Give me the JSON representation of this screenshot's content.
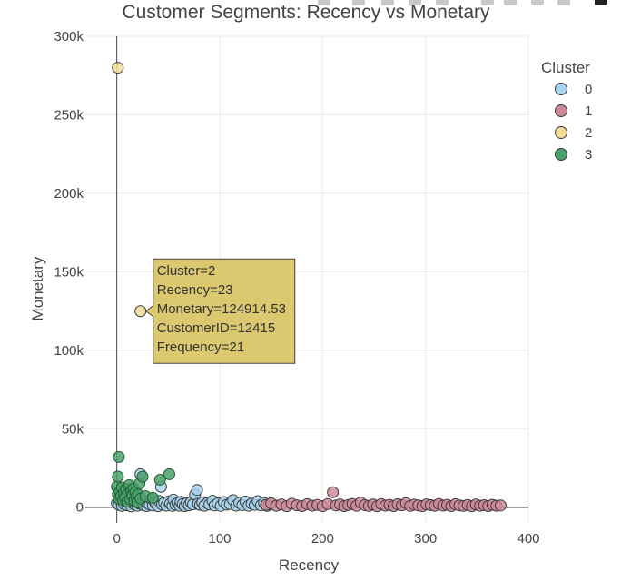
{
  "chart_data": {
    "type": "scatter",
    "title": "Customer Segments: Recency vs Monetary",
    "xlabel": "Recency",
    "ylabel": "Monetary",
    "xlim": [
      -20,
      400
    ],
    "ylim": [
      -10000,
      300000
    ],
    "x_ticks": [
      0,
      100,
      200,
      300,
      400
    ],
    "x_tick_labels": [
      "0",
      "100",
      "200",
      "300",
      "400"
    ],
    "y_ticks": [
      0,
      50000,
      100000,
      150000,
      200000,
      250000,
      300000
    ],
    "y_tick_labels": [
      "0",
      "50k",
      "100k",
      "150k",
      "200k",
      "250k",
      "300k"
    ],
    "grid": true,
    "legend": {
      "title": "Cluster",
      "position": "top-right"
    },
    "series": [
      {
        "name": "0",
        "color": "#a6d4ec",
        "points": [
          [
            0,
            2500
          ],
          [
            2,
            1500
          ],
          [
            4,
            3500
          ],
          [
            5,
            800
          ],
          [
            7,
            2000
          ],
          [
            8,
            4200
          ],
          [
            10,
            1200
          ],
          [
            12,
            2800
          ],
          [
            14,
            500
          ],
          [
            15,
            3000
          ],
          [
            17,
            1800
          ],
          [
            18,
            6000
          ],
          [
            20,
            900
          ],
          [
            22,
            2200
          ],
          [
            23,
            21000
          ],
          [
            24,
            4500
          ],
          [
            26,
            1300
          ],
          [
            27,
            3800
          ],
          [
            29,
            700
          ],
          [
            30,
            2600
          ],
          [
            32,
            1600
          ],
          [
            33,
            5200
          ],
          [
            35,
            1100
          ],
          [
            37,
            3200
          ],
          [
            38,
            2100
          ],
          [
            40,
            600
          ],
          [
            41,
            4000
          ],
          [
            43,
            13000
          ],
          [
            44,
            1700
          ],
          [
            46,
            2900
          ],
          [
            48,
            1000
          ],
          [
            50,
            3600
          ],
          [
            52,
            2300
          ],
          [
            54,
            800
          ],
          [
            55,
            4800
          ],
          [
            57,
            1500
          ],
          [
            59,
            2700
          ],
          [
            61,
            900
          ],
          [
            62,
            3400
          ],
          [
            64,
            1900
          ],
          [
            66,
            700
          ],
          [
            68,
            2500
          ],
          [
            70,
            1200
          ],
          [
            72,
            3100
          ],
          [
            74,
            1800
          ],
          [
            76,
            8000
          ],
          [
            78,
            11000
          ],
          [
            79,
            2200
          ],
          [
            81,
            1400
          ],
          [
            83,
            3000
          ],
          [
            85,
            900
          ],
          [
            88,
            2600
          ],
          [
            90,
            1700
          ],
          [
            93,
            4100
          ],
          [
            95,
            1100
          ],
          [
            98,
            2400
          ],
          [
            101,
            800
          ],
          [
            104,
            3300
          ],
          [
            107,
            1600
          ],
          [
            110,
            2000
          ],
          [
            113,
            4500
          ],
          [
            116,
            1000
          ],
          [
            119,
            2800
          ],
          [
            122,
            1300
          ],
          [
            125,
            3600
          ],
          [
            128,
            900
          ],
          [
            131,
            2300
          ],
          [
            134,
            1500
          ],
          [
            137,
            3900
          ],
          [
            140,
            1200
          ],
          [
            143,
            2700
          ],
          [
            146,
            800
          ],
          [
            148,
            1800
          ]
        ]
      },
      {
        "name": "1",
        "color": "#d08898",
        "points": [
          [
            145,
            1500
          ],
          [
            150,
            2500
          ],
          [
            155,
            900
          ],
          [
            160,
            1800
          ],
          [
            165,
            600
          ],
          [
            170,
            2200
          ],
          [
            175,
            1200
          ],
          [
            180,
            700
          ],
          [
            185,
            1900
          ],
          [
            190,
            1000
          ],
          [
            195,
            1500
          ],
          [
            200,
            600
          ],
          [
            205,
            2000
          ],
          [
            210,
            9500
          ],
          [
            213,
            1100
          ],
          [
            217,
            1800
          ],
          [
            221,
            700
          ],
          [
            225,
            1400
          ],
          [
            229,
            2100
          ],
          [
            233,
            900
          ],
          [
            237,
            3000
          ],
          [
            241,
            1300
          ],
          [
            245,
            800
          ],
          [
            249,
            1700
          ],
          [
            253,
            600
          ],
          [
            257,
            2000
          ],
          [
            261,
            1000
          ],
          [
            265,
            1500
          ],
          [
            269,
            700
          ],
          [
            273,
            1900
          ],
          [
            277,
            1200
          ],
          [
            281,
            2600
          ],
          [
            285,
            800
          ],
          [
            289,
            1600
          ],
          [
            293,
            1100
          ],
          [
            297,
            700
          ],
          [
            301,
            1800
          ],
          [
            305,
            1300
          ],
          [
            309,
            900
          ],
          [
            313,
            2100
          ],
          [
            317,
            1000
          ],
          [
            321,
            1500
          ],
          [
            325,
            700
          ],
          [
            329,
            1900
          ],
          [
            333,
            1100
          ],
          [
            337,
            800
          ],
          [
            341,
            1400
          ],
          [
            345,
            600
          ],
          [
            349,
            1700
          ],
          [
            353,
            900
          ],
          [
            357,
            1300
          ],
          [
            361,
            700
          ],
          [
            365,
            1500
          ],
          [
            369,
            900
          ],
          [
            373,
            1100
          ]
        ]
      },
      {
        "name": "2",
        "color": "#f2dc99",
        "points": [
          [
            1,
            280000
          ],
          [
            23,
            124914.53
          ]
        ]
      },
      {
        "name": "3",
        "color": "#4aa06a",
        "points": [
          [
            0,
            13000
          ],
          [
            1,
            8000
          ],
          [
            1,
            19500
          ],
          [
            2,
            5500
          ],
          [
            2,
            32000
          ],
          [
            3,
            10000
          ],
          [
            4,
            7000
          ],
          [
            5,
            12500
          ],
          [
            6,
            4500
          ],
          [
            7,
            9000
          ],
          [
            8,
            6000
          ],
          [
            9,
            11500
          ],
          [
            10,
            3500
          ],
          [
            11,
            8500
          ],
          [
            12,
            14000
          ],
          [
            13,
            5000
          ],
          [
            14,
            10000
          ],
          [
            15,
            7500
          ],
          [
            16,
            12000
          ],
          [
            17,
            4000
          ],
          [
            18,
            9500
          ],
          [
            19,
            6500
          ],
          [
            20,
            3000
          ],
          [
            21,
            8000
          ],
          [
            22,
            15000
          ],
          [
            23,
            5500
          ],
          [
            25,
            19500
          ],
          [
            28,
            7000
          ],
          [
            35,
            6000
          ],
          [
            42,
            17500
          ],
          [
            51,
            21000
          ]
        ]
      }
    ],
    "hover": {
      "target": {
        "series": "2",
        "index": 1
      },
      "lines": [
        "Cluster=2",
        "Recency=23",
        "Monetary=124914.53",
        "CustomerID=12415",
        "Frequency=21"
      ]
    }
  }
}
